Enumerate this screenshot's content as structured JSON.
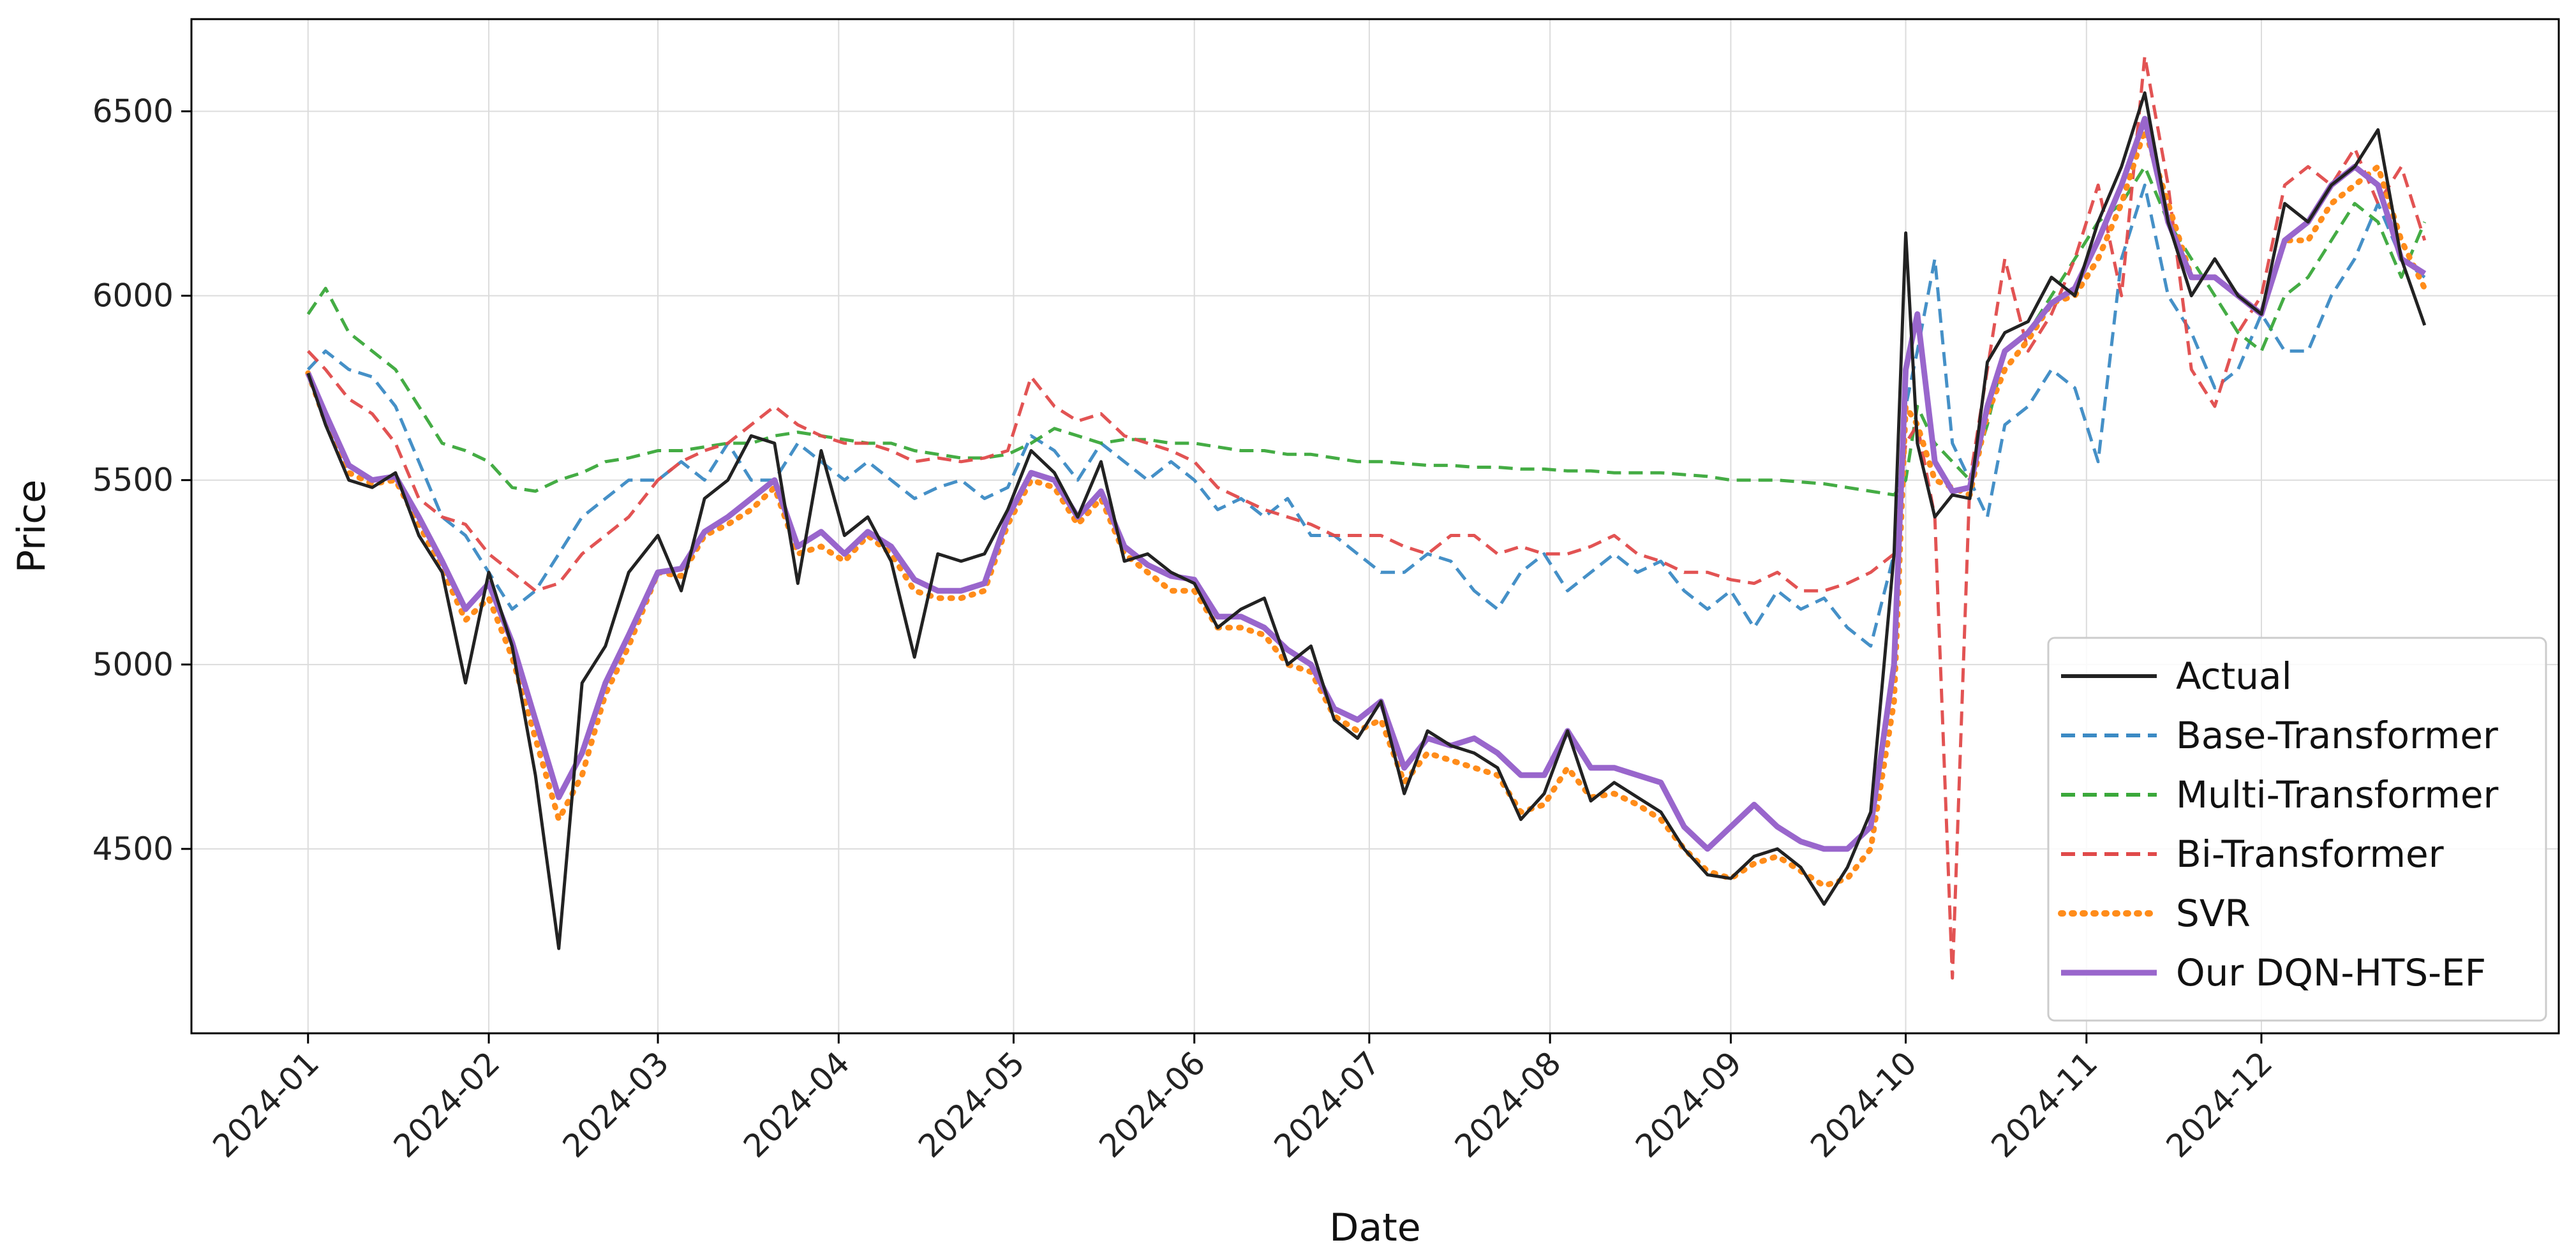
{
  "chart_data": {
    "type": "line",
    "title": "",
    "xlabel": "Date",
    "ylabel": "Price",
    "xlim": [
      "2023-12-12",
      "2025-01-21"
    ],
    "ylim": [
      4000,
      6750
    ],
    "grid": true,
    "legend_position": "bottom-right",
    "x_ticks": [
      "2024-01",
      "2024-02",
      "2024-03",
      "2024-04",
      "2024-05",
      "2024-06",
      "2024-07",
      "2024-08",
      "2024-09",
      "2024-10",
      "2024-11",
      "2024-12"
    ],
    "y_ticks": [
      4500,
      5000,
      5500,
      6000,
      6500
    ],
    "x": [
      "2024-01-01",
      "2024-01-04",
      "2024-01-08",
      "2024-01-12",
      "2024-01-16",
      "2024-01-20",
      "2024-01-24",
      "2024-01-28",
      "2024-02-01",
      "2024-02-05",
      "2024-02-09",
      "2024-02-13",
      "2024-02-17",
      "2024-02-21",
      "2024-02-25",
      "2024-03-01",
      "2024-03-05",
      "2024-03-09",
      "2024-03-13",
      "2024-03-17",
      "2024-03-21",
      "2024-03-25",
      "2024-03-29",
      "2024-04-02",
      "2024-04-06",
      "2024-04-10",
      "2024-04-14",
      "2024-04-18",
      "2024-04-22",
      "2024-04-26",
      "2024-04-30",
      "2024-05-04",
      "2024-05-08",
      "2024-05-12",
      "2024-05-16",
      "2024-05-20",
      "2024-05-24",
      "2024-05-28",
      "2024-06-01",
      "2024-06-05",
      "2024-06-09",
      "2024-06-13",
      "2024-06-17",
      "2024-06-21",
      "2024-06-25",
      "2024-06-29",
      "2024-07-03",
      "2024-07-07",
      "2024-07-11",
      "2024-07-15",
      "2024-07-19",
      "2024-07-23",
      "2024-07-27",
      "2024-07-31",
      "2024-08-04",
      "2024-08-08",
      "2024-08-12",
      "2024-08-16",
      "2024-08-20",
      "2024-08-24",
      "2024-08-28",
      "2024-09-01",
      "2024-09-05",
      "2024-09-09",
      "2024-09-13",
      "2024-09-17",
      "2024-09-21",
      "2024-09-25",
      "2024-09-29",
      "2024-10-01",
      "2024-10-03",
      "2024-10-06",
      "2024-10-09",
      "2024-10-12",
      "2024-10-15",
      "2024-10-18",
      "2024-10-22",
      "2024-10-26",
      "2024-10-30",
      "2024-11-03",
      "2024-11-07",
      "2024-11-11",
      "2024-11-15",
      "2024-11-19",
      "2024-11-23",
      "2024-11-27",
      "2024-12-01",
      "2024-12-05",
      "2024-12-09",
      "2024-12-13",
      "2024-12-17",
      "2024-12-21",
      "2024-12-25",
      "2024-12-29"
    ],
    "series": [
      {
        "name": "Actual",
        "color": "#222222",
        "style": "solid",
        "values": [
          5790,
          5650,
          5500,
          5480,
          5520,
          5350,
          5250,
          4950,
          5250,
          5050,
          4700,
          4230,
          4950,
          5050,
          5250,
          5350,
          5200,
          5450,
          5500,
          5620,
          5600,
          5220,
          5580,
          5350,
          5400,
          5280,
          5020,
          5300,
          5280,
          5300,
          5420,
          5580,
          5520,
          5400,
          5550,
          5280,
          5300,
          5250,
          5220,
          5100,
          5150,
          5180,
          5000,
          5050,
          4850,
          4800,
          4900,
          4650,
          4820,
          4780,
          4760,
          4720,
          4580,
          4650,
          4820,
          4630,
          4680,
          4640,
          4600,
          4500,
          4430,
          4420,
          4480,
          4500,
          4450,
          4350,
          4450,
          4600,
          5300,
          6170,
          5600,
          5400,
          5460,
          5450,
          5820,
          5900,
          5930,
          6050,
          6000,
          6200,
          6350,
          6550,
          6200,
          6000,
          6100,
          6000,
          5950,
          6250,
          6200,
          6300,
          6350,
          6450,
          6100,
          5920
        ]
      },
      {
        "name": "Base-Transformer",
        "color": "#3b8ac4",
        "style": "dashed",
        "values": [
          5800,
          5850,
          5800,
          5780,
          5700,
          5550,
          5400,
          5350,
          5250,
          5150,
          5200,
          5300,
          5400,
          5450,
          5500,
          5500,
          5550,
          5500,
          5600,
          5500,
          5500,
          5600,
          5550,
          5500,
          5550,
          5500,
          5450,
          5480,
          5500,
          5450,
          5480,
          5620,
          5580,
          5500,
          5600,
          5550,
          5500,
          5550,
          5500,
          5420,
          5450,
          5400,
          5450,
          5350,
          5350,
          5300,
          5250,
          5250,
          5300,
          5280,
          5200,
          5150,
          5250,
          5300,
          5200,
          5250,
          5300,
          5250,
          5280,
          5200,
          5150,
          5200,
          5100,
          5200,
          5150,
          5180,
          5100,
          5050,
          5300,
          5700,
          5850,
          6100,
          5600,
          5500,
          5400,
          5650,
          5700,
          5800,
          5750,
          5550,
          6100,
          6300,
          6000,
          5900,
          5750,
          5800,
          5950,
          5850,
          5850,
          6000,
          6100,
          6250,
          6100,
          6050
        ]
      },
      {
        "name": "Multi-Transformer",
        "color": "#3aa83a",
        "style": "dashed",
        "values": [
          5950,
          6020,
          5900,
          5850,
          5800,
          5700,
          5600,
          5580,
          5550,
          5480,
          5470,
          5500,
          5520,
          5550,
          5560,
          5580,
          5580,
          5590,
          5600,
          5600,
          5620,
          5630,
          5620,
          5610,
          5600,
          5600,
          5580,
          5570,
          5560,
          5560,
          5570,
          5600,
          5640,
          5620,
          5600,
          5610,
          5610,
          5600,
          5600,
          5590,
          5580,
          5580,
          5570,
          5570,
          5560,
          5550,
          5550,
          5545,
          5540,
          5540,
          5535,
          5535,
          5530,
          5530,
          5525,
          5525,
          5520,
          5520,
          5520,
          5515,
          5510,
          5500,
          5500,
          5500,
          5495,
          5490,
          5480,
          5470,
          5460,
          5500,
          5700,
          5600,
          5550,
          5500,
          5650,
          5850,
          5900,
          6000,
          6100,
          6200,
          6250,
          6350,
          6200,
          6100,
          6000,
          5900,
          5850,
          6000,
          6050,
          6150,
          6250,
          6200,
          6050,
          6200
        ]
      },
      {
        "name": "Bi-Transformer",
        "color": "#e04a4a",
        "style": "dashed",
        "values": [
          5850,
          5800,
          5720,
          5680,
          5600,
          5450,
          5400,
          5380,
          5300,
          5250,
          5200,
          5220,
          5300,
          5350,
          5400,
          5500,
          5550,
          5580,
          5600,
          5650,
          5700,
          5650,
          5620,
          5600,
          5600,
          5580,
          5550,
          5560,
          5550,
          5560,
          5580,
          5780,
          5700,
          5660,
          5680,
          5620,
          5600,
          5580,
          5550,
          5480,
          5450,
          5420,
          5400,
          5380,
          5350,
          5350,
          5350,
          5320,
          5300,
          5350,
          5350,
          5300,
          5320,
          5300,
          5300,
          5320,
          5350,
          5300,
          5280,
          5250,
          5250,
          5230,
          5220,
          5250,
          5200,
          5200,
          5220,
          5250,
          5300,
          5600,
          5650,
          5400,
          4150,
          5500,
          5800,
          6100,
          5850,
          5950,
          6100,
          6300,
          6000,
          6650,
          6300,
          5800,
          5700,
          5900,
          6000,
          6300,
          6350,
          6300,
          6400,
          6250,
          6350,
          6150
        ]
      },
      {
        "name": "SVR",
        "color": "#ff8c1a",
        "style": "dotted",
        "values": [
          5790,
          5660,
          5520,
          5490,
          5500,
          5380,
          5260,
          5120,
          5180,
          5020,
          4800,
          4580,
          4700,
          4920,
          5050,
          5250,
          5240,
          5350,
          5380,
          5420,
          5480,
          5300,
          5320,
          5280,
          5350,
          5300,
          5200,
          5180,
          5180,
          5200,
          5380,
          5500,
          5480,
          5380,
          5450,
          5300,
          5250,
          5200,
          5200,
          5100,
          5100,
          5080,
          5000,
          4980,
          4860,
          4820,
          4850,
          4680,
          4760,
          4740,
          4720,
          4700,
          4600,
          4620,
          4720,
          4640,
          4650,
          4620,
          4580,
          4500,
          4440,
          4420,
          4460,
          4480,
          4440,
          4400,
          4420,
          4500,
          4900,
          5700,
          5650,
          5500,
          5480,
          5460,
          5680,
          5800,
          5880,
          5980,
          6000,
          6100,
          6250,
          6450,
          6250,
          6050,
          6050,
          6000,
          5950,
          6150,
          6150,
          6250,
          6300,
          6350,
          6150,
          6020
        ]
      },
      {
        "name": "Our DQN-HTS-EF",
        "color": "#9966cc",
        "style": "solid",
        "values": [
          5790,
          5680,
          5540,
          5500,
          5510,
          5400,
          5280,
          5150,
          5220,
          5060,
          4850,
          4640,
          4760,
          4950,
          5080,
          5250,
          5260,
          5360,
          5400,
          5450,
          5500,
          5320,
          5360,
          5300,
          5360,
          5320,
          5230,
          5200,
          5200,
          5220,
          5400,
          5520,
          5500,
          5400,
          5470,
          5320,
          5270,
          5240,
          5230,
          5130,
          5130,
          5100,
          5040,
          5000,
          4880,
          4850,
          4900,
          4720,
          4800,
          4780,
          4800,
          4760,
          4700,
          4700,
          4820,
          4720,
          4720,
          4700,
          4680,
          4560,
          4500,
          4560,
          4620,
          4560,
          4520,
          4500,
          4500,
          4560,
          5000,
          5800,
          5950,
          5550,
          5470,
          5480,
          5700,
          5850,
          5900,
          5980,
          6020,
          6150,
          6300,
          6480,
          6200,
          6050,
          6050,
          6000,
          5950,
          6150,
          6200,
          6300,
          6350,
          6300,
          6100,
          6060
        ]
      }
    ]
  }
}
